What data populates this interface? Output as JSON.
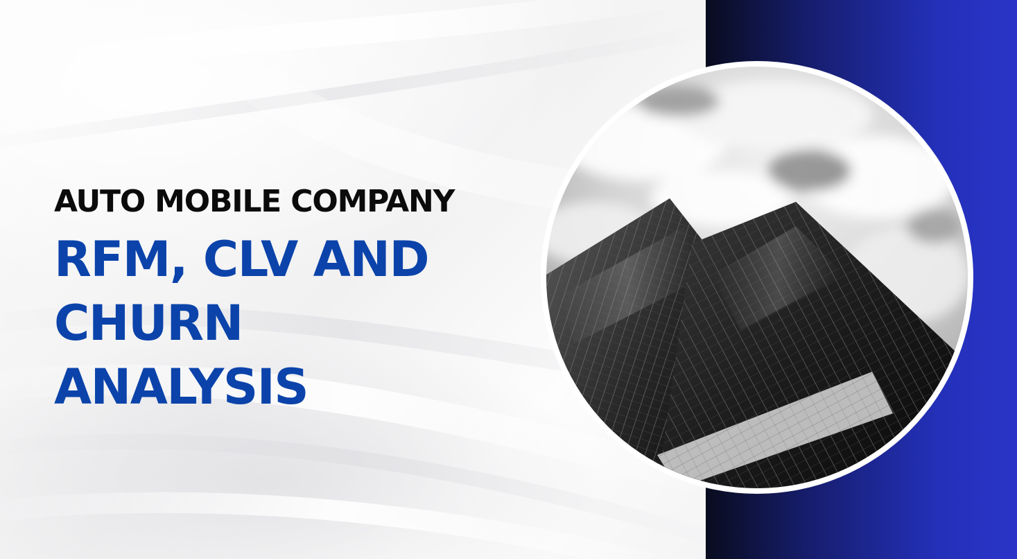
{
  "slide": {
    "subtitle": "AUTO MOBILE COMPANY",
    "title_lines": [
      "RFM, CLV AND",
      "CHURN",
      "ANALYSIS"
    ]
  },
  "colors": {
    "title_blue": "#0b43aa",
    "subtitle_black": "#0b0b0b",
    "panel_dark": "#090c1e",
    "panel_blue": "#2a35c8"
  },
  "image": {
    "subject": "skyscraper-photo"
  }
}
